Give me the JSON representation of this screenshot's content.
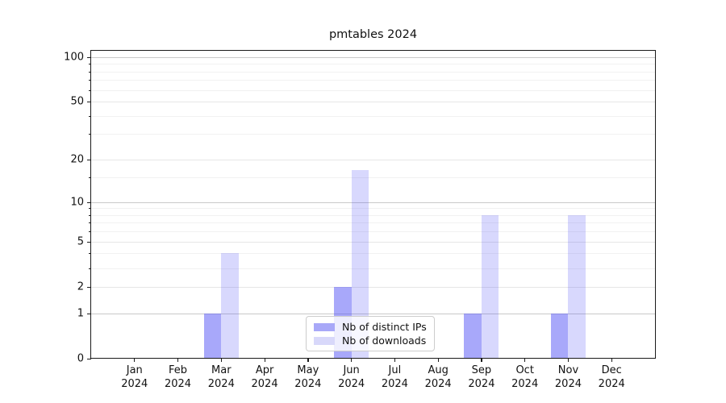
{
  "chart_data": {
    "type": "bar",
    "title": "pmtables 2024",
    "categories": [
      "Jan",
      "Feb",
      "Mar",
      "Apr",
      "May",
      "Jun",
      "Jul",
      "Aug",
      "Sep",
      "Oct",
      "Nov",
      "Dec"
    ],
    "year_label": "2024",
    "series": [
      {
        "name": "Nb of distinct IPs",
        "color": "#a8a8f8",
        "fill": "rgba(85,85,245,0.51)",
        "values": [
          0,
          0,
          1,
          0,
          0,
          2,
          0,
          0,
          1,
          0,
          1,
          0
        ]
      },
      {
        "name": "Nb of downloads",
        "color": "#d8d8fa",
        "fill": "rgba(85,85,245,0.23)",
        "values": [
          0,
          0,
          4,
          0,
          0,
          17,
          0,
          0,
          8,
          0,
          8,
          0
        ]
      }
    ],
    "xlabel": "",
    "ylabel": "",
    "yscale": "log1p",
    "ylim": [
      0,
      109
    ],
    "yticks_major": [
      0,
      1,
      2,
      5,
      10,
      20,
      50,
      100
    ],
    "yticks_strong": [
      1,
      10,
      100
    ],
    "yticks_minor": [
      3,
      4,
      6,
      7,
      8,
      9,
      15,
      30,
      40,
      60,
      70,
      80,
      90
    ],
    "grid": "on",
    "legend_position": "lower center"
  }
}
